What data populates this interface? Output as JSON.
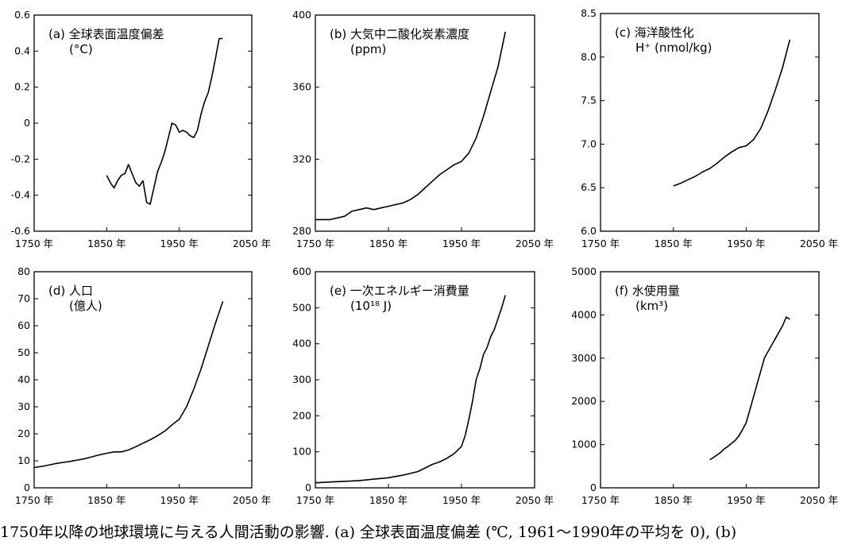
{
  "caption": "1750年以降の地球環境に与える人間活動の影響. (a) 全球表面温度偏差 (℃, 1961～1990年の平均を 0), (b)",
  "chart_data": [
    {
      "type": "line",
      "title": "(a) 全球表面温度偏差",
      "unit": "(°C)",
      "xlim": [
        1750,
        2050
      ],
      "ylim": [
        -0.6,
        0.6
      ],
      "xticks": [
        "1750 年",
        "1850 年",
        "1950 年",
        "2050 年"
      ],
      "yticks": [
        "0.6",
        "0.4",
        "0.2",
        "0",
        "-0.2",
        "-0.4",
        "-0.6"
      ],
      "x": [
        1850,
        1855,
        1860,
        1865,
        1870,
        1875,
        1880,
        1885,
        1890,
        1895,
        1900,
        1905,
        1910,
        1915,
        1920,
        1925,
        1930,
        1935,
        1940,
        1945,
        1950,
        1955,
        1960,
        1965,
        1970,
        1975,
        1980,
        1985,
        1990,
        1995,
        2000,
        2005,
        2010
      ],
      "y": [
        -0.29,
        -0.33,
        -0.36,
        -0.32,
        -0.29,
        -0.28,
        -0.23,
        -0.28,
        -0.33,
        -0.35,
        -0.32,
        -0.44,
        -0.45,
        -0.36,
        -0.27,
        -0.22,
        -0.16,
        -0.08,
        0.0,
        -0.01,
        -0.05,
        -0.04,
        -0.05,
        -0.07,
        -0.08,
        -0.04,
        0.05,
        0.12,
        0.17,
        0.26,
        0.36,
        0.47,
        0.47
      ]
    },
    {
      "type": "line",
      "title": "(b) 大気中二酸化炭素濃度",
      "unit": "(ppm)",
      "xlim": [
        1750,
        2050
      ],
      "ylim": [
        270,
        400
      ],
      "xticks": [
        "1750 年",
        "1850 年",
        "1950 年",
        "2050 年"
      ],
      "yticks": [
        "400",
        "360",
        "320",
        "280"
      ],
      "x": [
        1750,
        1760,
        1770,
        1780,
        1790,
        1800,
        1810,
        1820,
        1830,
        1840,
        1850,
        1860,
        1870,
        1880,
        1890,
        1900,
        1910,
        1920,
        1930,
        1940,
        1950,
        1960,
        1970,
        1980,
        1990,
        2000,
        2010
      ],
      "y": [
        277,
        277,
        277,
        278,
        279,
        282,
        283,
        284,
        283,
        284,
        285,
        286,
        287,
        289,
        292,
        296,
        300,
        304,
        307,
        310,
        312,
        317,
        326,
        339,
        354,
        369,
        390
      ]
    },
    {
      "type": "line",
      "title": "(c) 海洋酸性化",
      "unit": "H⁺ (nmol/kg)",
      "xlim": [
        1750,
        2050
      ],
      "ylim": [
        6.0,
        8.5
      ],
      "xticks": [
        "1750 年",
        "1850 年",
        "1950 年",
        "2050 年"
      ],
      "yticks": [
        "8.5",
        "8.0",
        "7.5",
        "7.0",
        "6.5",
        "6.0"
      ],
      "x": [
        1850,
        1860,
        1870,
        1880,
        1890,
        1900,
        1910,
        1920,
        1930,
        1940,
        1950,
        1960,
        1970,
        1980,
        1990,
        2000,
        2010
      ],
      "y": [
        6.52,
        6.55,
        6.59,
        6.63,
        6.68,
        6.72,
        6.78,
        6.85,
        6.91,
        6.96,
        6.98,
        7.05,
        7.18,
        7.38,
        7.62,
        7.88,
        8.2
      ]
    },
    {
      "type": "line",
      "title": "(d) 人口",
      "unit": "(億人)",
      "xlim": [
        1750,
        2050
      ],
      "ylim": [
        0,
        80
      ],
      "xticks": [
        "1750 年",
        "1850 年",
        "1950 年",
        "2050 年"
      ],
      "yticks": [
        "80",
        "70",
        "60",
        "50",
        "40",
        "30",
        "20",
        "10",
        "0"
      ],
      "x": [
        1750,
        1760,
        1770,
        1780,
        1790,
        1800,
        1810,
        1820,
        1830,
        1840,
        1850,
        1860,
        1870,
        1880,
        1890,
        1900,
        1910,
        1920,
        1930,
        1940,
        1950,
        1960,
        1970,
        1980,
        1990,
        2000,
        2010
      ],
      "y": [
        7.5,
        7.9,
        8.4,
        9.0,
        9.4,
        9.8,
        10.3,
        10.8,
        11.5,
        12.2,
        12.8,
        13.3,
        13.3,
        14.0,
        15.2,
        16.5,
        17.8,
        19.3,
        21.0,
        23.3,
        25.4,
        30.0,
        36.5,
        44.0,
        52.5,
        61.0,
        69.0
      ]
    },
    {
      "type": "line",
      "title": "(e) 一次エネルギー消費量",
      "unit": "(10¹⁸ J)",
      "xlim": [
        1750,
        2050
      ],
      "ylim": [
        0,
        600
      ],
      "xticks": [
        "1750 年",
        "1850 年",
        "1950 年",
        "2050 年"
      ],
      "yticks": [
        "600",
        "500",
        "400",
        "300",
        "200",
        "100",
        "0"
      ],
      "x": [
        1750,
        1770,
        1790,
        1810,
        1830,
        1850,
        1870,
        1890,
        1900,
        1910,
        1920,
        1930,
        1940,
        1950,
        1955,
        1960,
        1965,
        1970,
        1975,
        1980,
        1985,
        1990,
        1995,
        2000,
        2005,
        2010
      ],
      "y": [
        14,
        16,
        18,
        20,
        24,
        28,
        35,
        45,
        55,
        65,
        72,
        82,
        95,
        115,
        145,
        190,
        240,
        300,
        330,
        370,
        390,
        420,
        440,
        470,
        500,
        535
      ]
    },
    {
      "type": "line",
      "title": "(f) 水使用量",
      "unit": "(km³)",
      "xlim": [
        1750,
        2050
      ],
      "ylim": [
        0,
        5000
      ],
      "xticks": [
        "1750 年",
        "1850 年",
        "1950 年",
        "2050 年"
      ],
      "yticks": [
        "5000",
        "4000",
        "3000",
        "2000",
        "1000",
        "0"
      ],
      "x": [
        1900,
        1905,
        1910,
        1915,
        1920,
        1925,
        1930,
        1935,
        1940,
        1945,
        1950,
        1955,
        1960,
        1965,
        1970,
        1975,
        1980,
        1985,
        1990,
        1995,
        2000,
        2005,
        2010
      ],
      "y": [
        650,
        700,
        760,
        820,
        900,
        960,
        1030,
        1100,
        1200,
        1350,
        1500,
        1800,
        2100,
        2400,
        2700,
        3000,
        3150,
        3300,
        3450,
        3600,
        3750,
        3950,
        3900
      ]
    }
  ]
}
